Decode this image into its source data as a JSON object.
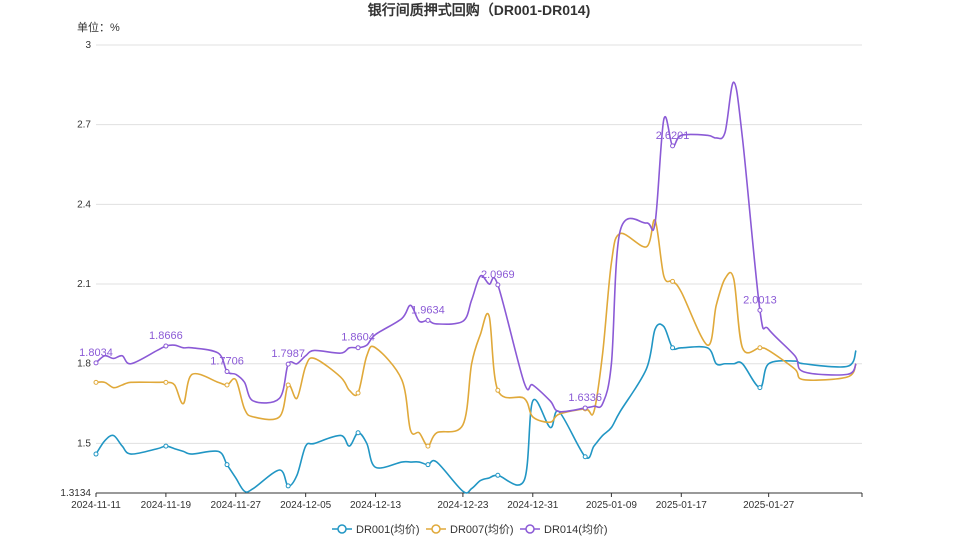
{
  "chart_data": {
    "type": "line",
    "title": "银行间质押式回购（DR001-DR014)",
    "unit_label": "单位：%",
    "ylim": [
      1.3134,
      3
    ],
    "yticks": [
      "1.3134",
      "1.5",
      "1.8",
      "2.1",
      "2.4",
      "2.7",
      "3"
    ],
    "grid": true,
    "legend_position": "bottom",
    "xticks": [
      "2024-11-11",
      "2024-11-19",
      "2024-11-27",
      "2024-12-05",
      "2024-12-13",
      "2024-12-23",
      "2024-12-31",
      "2025-01-09",
      "2025-01-17",
      "2025-01-27"
    ],
    "x": [
      "2024-11-11",
      "2024-11-12",
      "2024-11-13",
      "2024-11-14",
      "2024-11-15",
      "2024-11-18",
      "2024-11-19",
      "2024-11-20",
      "2024-11-21",
      "2024-11-22",
      "2024-11-25",
      "2024-11-26",
      "2024-11-27",
      "2024-11-28",
      "2024-11-29",
      "2024-12-02",
      "2024-12-03",
      "2024-12-04",
      "2024-12-05",
      "2024-12-06",
      "2024-12-09",
      "2024-12-10",
      "2024-12-11",
      "2024-12-12",
      "2024-12-13",
      "2024-12-16",
      "2024-12-17",
      "2024-12-18",
      "2024-12-19",
      "2024-12-20",
      "2024-12-23",
      "2024-12-24",
      "2024-12-25",
      "2024-12-26",
      "2024-12-27",
      "2024-12-30",
      "2024-12-31",
      "2025-01-02",
      "2025-01-03",
      "2025-01-06",
      "2025-01-07",
      "2025-01-08",
      "2025-01-09",
      "2025-01-10",
      "2025-01-13",
      "2025-01-14",
      "2025-01-15",
      "2025-01-16",
      "2025-01-17",
      "2025-01-20",
      "2025-01-21",
      "2025-01-22",
      "2025-01-23",
      "2025-01-24",
      "2025-01-26",
      "2025-01-27",
      "2025-01-30",
      "2025-01-31",
      "2025-02-05",
      "2025-02-06"
    ],
    "series": [
      {
        "name": "DR001(均价)",
        "color": "#2196c4",
        "values": [
          1.46,
          1.51,
          1.53,
          1.49,
          1.46,
          1.48,
          1.49,
          1.48,
          1.47,
          1.46,
          1.47,
          1.42,
          1.37,
          1.32,
          1.33,
          1.4,
          1.34,
          1.38,
          1.49,
          1.5,
          1.53,
          1.49,
          1.54,
          1.5,
          1.41,
          1.43,
          1.43,
          1.43,
          1.42,
          1.43,
          1.32,
          1.33,
          1.36,
          1.37,
          1.38,
          1.36,
          1.66,
          1.56,
          1.62,
          1.45,
          1.49,
          1.53,
          1.56,
          1.62,
          1.78,
          1.93,
          1.94,
          1.86,
          1.86,
          1.86,
          1.8,
          1.8,
          1.8,
          1.8,
          1.71,
          1.8,
          1.81,
          1.8,
          1.79,
          1.85
        ]
      },
      {
        "name": "DR007(均价)",
        "color": "#e0a93a",
        "values": [
          1.73,
          1.73,
          1.71,
          1.72,
          1.73,
          1.73,
          1.73,
          1.72,
          1.65,
          1.76,
          1.73,
          1.72,
          1.74,
          1.63,
          1.6,
          1.6,
          1.72,
          1.67,
          1.79,
          1.82,
          1.75,
          1.7,
          1.69,
          1.83,
          1.86,
          1.74,
          1.55,
          1.54,
          1.49,
          1.54,
          1.57,
          1.8,
          1.91,
          1.98,
          1.7,
          1.67,
          1.6,
          1.58,
          1.61,
          1.63,
          1.62,
          1.84,
          2.18,
          2.29,
          2.24,
          2.34,
          2.13,
          2.11,
          2.07,
          1.87,
          2.02,
          2.12,
          2.12,
          1.86,
          1.86,
          1.85,
          1.78,
          1.74,
          1.75,
          1.8
        ]
      },
      {
        "name": "DR014(均价)",
        "color": "#8b5ad6",
        "values": [
          1.8034,
          1.83,
          1.82,
          1.83,
          1.8,
          1.85,
          1.8666,
          1.87,
          1.86,
          1.86,
          1.84,
          1.7706,
          1.76,
          1.73,
          1.66,
          1.67,
          1.7987,
          1.8,
          1.83,
          1.85,
          1.84,
          1.86,
          1.8604,
          1.87,
          1.91,
          1.97,
          2.02,
          1.96,
          1.9634,
          1.95,
          1.96,
          2.04,
          2.13,
          2.1,
          2.0969,
          1.73,
          1.72,
          1.66,
          1.62,
          1.6336,
          1.64,
          1.65,
          1.8,
          2.3,
          2.33,
          2.33,
          2.72,
          2.6201,
          2.66,
          2.66,
          2.65,
          2.67,
          2.86,
          2.65,
          2.0013,
          1.93,
          1.83,
          1.77,
          1.76,
          1.8
        ]
      }
    ],
    "data_labels": [
      {
        "series": 2,
        "index": 0,
        "text": "1.8034"
      },
      {
        "series": 2,
        "index": 6,
        "text": "1.8666"
      },
      {
        "series": 2,
        "index": 11,
        "text": "1.7706"
      },
      {
        "series": 2,
        "index": 16,
        "text": "1.7987"
      },
      {
        "series": 2,
        "index": 22,
        "text": "1.8604"
      },
      {
        "series": 2,
        "index": 28,
        "text": "1.9634"
      },
      {
        "series": 2,
        "index": 34,
        "text": "2.0969"
      },
      {
        "series": 2,
        "index": 39,
        "text": "1.6336"
      },
      {
        "series": 2,
        "index": 47,
        "text": "2.6201"
      },
      {
        "series": 2,
        "index": 54,
        "text": "2.0013"
      }
    ]
  }
}
